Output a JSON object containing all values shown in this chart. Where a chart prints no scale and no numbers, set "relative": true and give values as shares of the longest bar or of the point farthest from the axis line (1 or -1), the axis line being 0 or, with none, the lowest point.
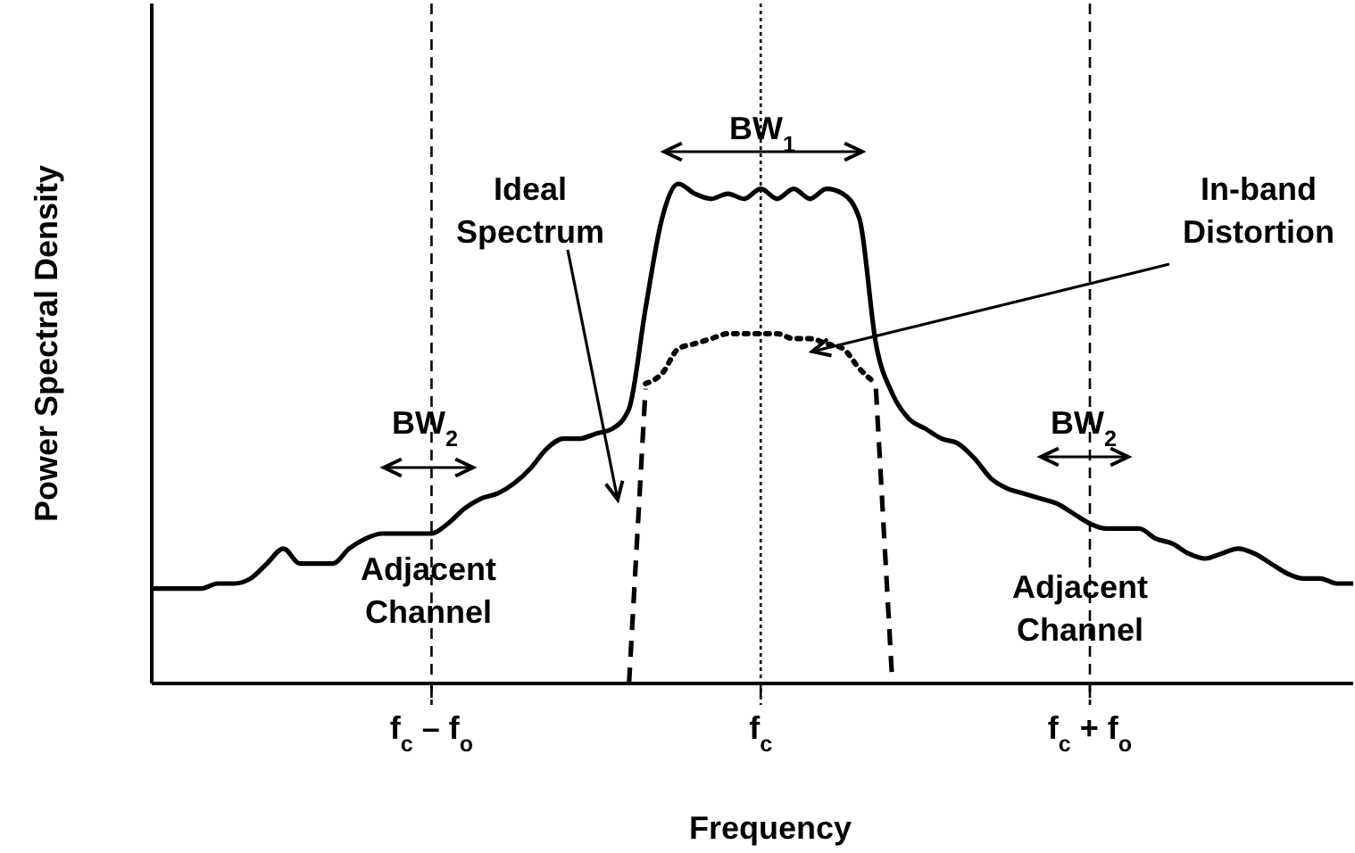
{
  "chart_data": {
    "type": "line",
    "relative": true,
    "xlabel": "Frequency",
    "ylabel": "Power Spectral Density",
    "categories": [
      null,
      null,
      null,
      null,
      null,
      null,
      null,
      null,
      null,
      null,
      null,
      null,
      null,
      null,
      null,
      null,
      null,
      "f$_{c}$ – f$_{o}$",
      null,
      null,
      null,
      null,
      null,
      null,
      null,
      null,
      null,
      null,
      null,
      null,
      null,
      null,
      null,
      null,
      null,
      null,
      null,
      "f$_{c}$",
      null,
      null,
      null,
      null,
      null,
      null,
      null,
      null,
      null,
      null,
      null,
      null,
      null,
      null,
      null,
      null,
      null,
      null,
      null,
      "f$_{c}$ + f$_{o}$",
      null,
      null,
      null,
      null,
      null,
      null,
      null,
      null,
      null,
      null,
      null,
      null,
      null,
      null,
      null,
      null
    ],
    "series": [
      {
        "color": "#000000",
        "line_style": "solid",
        "values": [
          0.19,
          0.19,
          0.19,
          0.19,
          0.2,
          0.2,
          0.21,
          0.24,
          0.27,
          0.24,
          0.24,
          0.24,
          0.27,
          0.29,
          0.3,
          0.3,
          0.3,
          0.3,
          0.32,
          0.35,
          0.37,
          0.38,
          0.4,
          0.43,
          0.47,
          0.49,
          0.49,
          0.5,
          0.51,
          0.55,
          0.75,
          0.93,
          1,
          0.98,
          0.97,
          0.98,
          0.97,
          0.99,
          0.97,
          0.99,
          0.97,
          0.99,
          0.98,
          0.93,
          0.68,
          0.58,
          0.53,
          0.51,
          0.49,
          0.48,
          0.45,
          0.41,
          0.39,
          0.38,
          0.37,
          0.36,
          0.34,
          0.32,
          0.31,
          0.31,
          0.31,
          0.29,
          0.28,
          0.26,
          0.25,
          0.26,
          0.27,
          0.26,
          0.24,
          0.22,
          0.21,
          0.21,
          0.2,
          0.2
        ]
      },
      {
        "color": "#000000",
        "line_style": "dotted",
        "values": [
          null,
          null,
          null,
          null,
          null,
          null,
          null,
          null,
          null,
          null,
          null,
          null,
          null,
          null,
          null,
          null,
          null,
          null,
          null,
          null,
          null,
          null,
          null,
          null,
          null,
          null,
          null,
          null,
          null,
          null,
          0.6,
          0.62,
          0.67,
          0.68,
          0.69,
          0.7,
          0.7,
          0.7,
          0.7,
          0.69,
          0.69,
          0.68,
          0.67,
          0.63,
          0.6,
          null,
          null,
          null,
          null,
          null,
          null,
          null,
          null,
          null,
          null,
          null,
          null,
          null,
          null,
          null,
          null,
          null,
          null,
          null,
          null,
          null,
          null,
          null,
          null,
          null,
          null,
          null,
          null,
          null
        ]
      },
      {
        "color": "#000000",
        "line_style": "dashed",
        "values": [
          null,
          null,
          null,
          null,
          null,
          null,
          null,
          null,
          null,
          null,
          null,
          null,
          null,
          null,
          null,
          null,
          null,
          null,
          null,
          null,
          null,
          null,
          null,
          null,
          null,
          null,
          null,
          null,
          null,
          0,
          0.59,
          null,
          null,
          null,
          null,
          null,
          null,
          null,
          null,
          null,
          null,
          null,
          null,
          null,
          0.59,
          0,
          null,
          null,
          null,
          null,
          null,
          null,
          null,
          null,
          null,
          null,
          null,
          null,
          null,
          null,
          null,
          null,
          null,
          null,
          null,
          null,
          null,
          null,
          null,
          null,
          null,
          null,
          null,
          null
        ]
      }
    ],
    "ref_lines": [
      {
        "axis": "x",
        "value": "f$_{c}$ – f$_{o}$",
        "label": null,
        "line_style": "dashed"
      },
      {
        "axis": "x",
        "value": "f$_{c}$",
        "label": null,
        "line_style": "dotted"
      },
      {
        "axis": "x",
        "value": "f$_{c}$ + f$_{o}$",
        "label": null,
        "line_style": "dashed"
      }
    ],
    "annotations": [
      "BW$_{1}$",
      "Ideal Spectrum",
      "In-band Distortion",
      "BW$_{2}$",
      "BW$_{2}$",
      "Adjacent Channel",
      "Adjacent Channel"
    ]
  }
}
